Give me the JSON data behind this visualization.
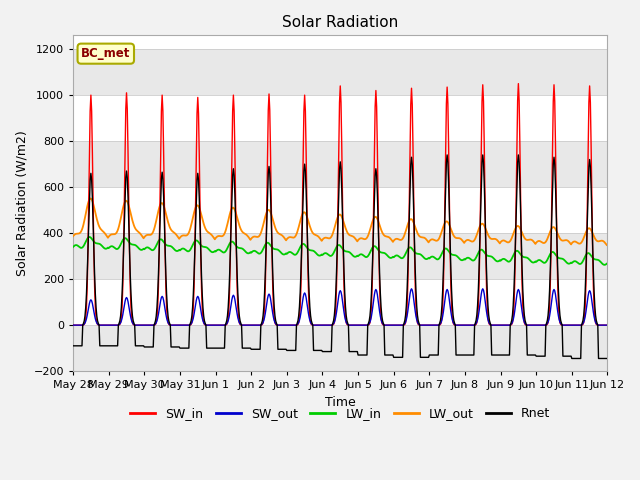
{
  "title": "Solar Radiation",
  "xlabel": "Time",
  "ylabel": "Solar Radiation (W/m2)",
  "ylim": [
    -200,
    1260
  ],
  "yticks": [
    -200,
    0,
    200,
    400,
    600,
    800,
    1000,
    1200
  ],
  "annotation": "BC_met",
  "legend_entries": [
    "SW_in",
    "SW_out",
    "LW_in",
    "LW_out",
    "Rnet"
  ],
  "colors": {
    "SW_in": "#FF0000",
    "SW_out": "#0000CC",
    "LW_in": "#00CC00",
    "LW_out": "#FF8C00",
    "Rnet": "#000000"
  },
  "num_days": 15,
  "fig_bg": "#F2F2F2",
  "plot_bg": "#FFFFFF"
}
